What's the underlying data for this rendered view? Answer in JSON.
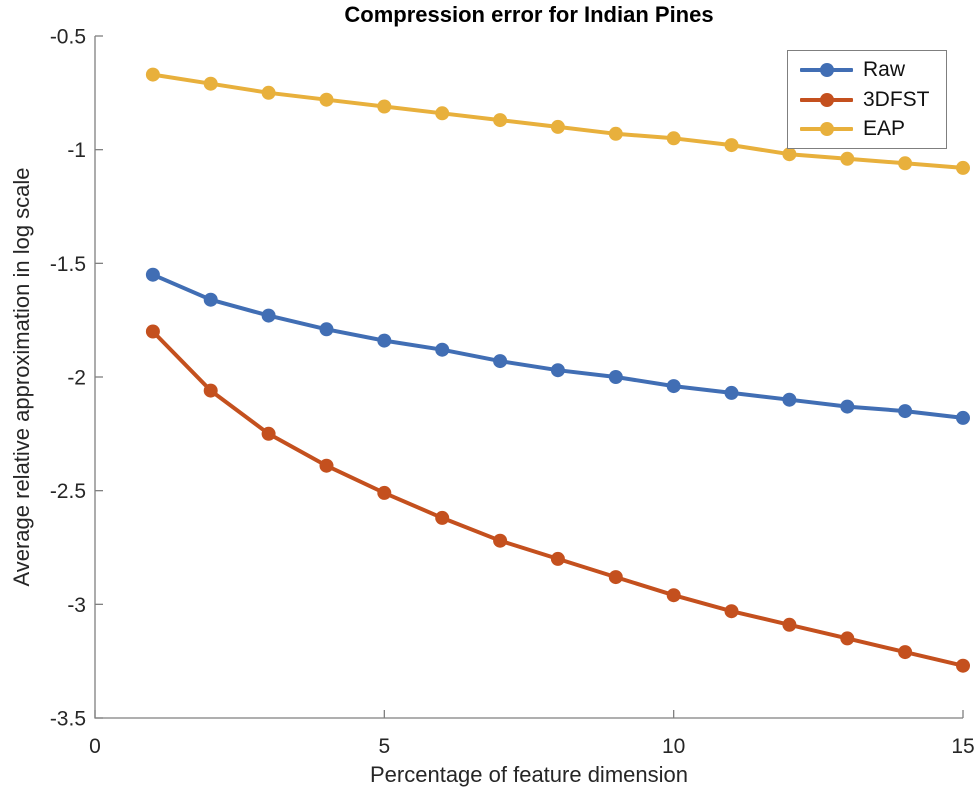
{
  "chart_data": {
    "type": "line",
    "title": "Compression error for Indian Pines",
    "xlabel": "Percentage of feature dimension",
    "ylabel": "Average relative approximation in log scale",
    "xlim": [
      0,
      15
    ],
    "ylim": [
      -3.5,
      -0.5
    ],
    "x_ticks": [
      0,
      5,
      10,
      15
    ],
    "y_ticks": [
      -3.5,
      -3,
      -2.5,
      -2,
      -1.5,
      -1,
      -0.5
    ],
    "grid": false,
    "legend_position": "top-right",
    "background_color": "#ffffff",
    "axis_color": "#7f7f7f",
    "tick_text_color": "#262626",
    "x": [
      1,
      2,
      3,
      4,
      5,
      6,
      7,
      8,
      9,
      10,
      11,
      12,
      13,
      14,
      15
    ],
    "series": [
      {
        "name": "Raw",
        "color": "#416EB4",
        "values": [
          -1.55,
          -1.66,
          -1.73,
          -1.79,
          -1.84,
          -1.88,
          -1.93,
          -1.97,
          -2.0,
          -2.04,
          -2.07,
          -2.1,
          -2.13,
          -2.15,
          -2.18
        ]
      },
      {
        "name": "3DFST",
        "color": "#C4501E",
        "values": [
          -1.8,
          -2.06,
          -2.25,
          -2.39,
          -2.51,
          -2.62,
          -2.72,
          -2.8,
          -2.88,
          -2.96,
          -3.03,
          -3.09,
          -3.15,
          -3.21,
          -3.27
        ]
      },
      {
        "name": "EAP",
        "color": "#E8B03C",
        "values": [
          -0.67,
          -0.71,
          -0.75,
          -0.78,
          -0.81,
          -0.84,
          -0.87,
          -0.9,
          -0.93,
          -0.95,
          -0.98,
          -1.02,
          -1.04,
          -1.06,
          -1.08
        ]
      }
    ]
  }
}
